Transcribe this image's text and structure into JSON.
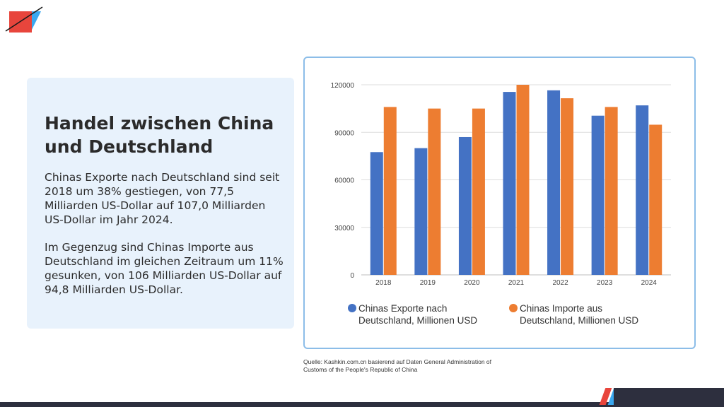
{
  "slide": {
    "title": "Handel zwischen China und Deutschland",
    "paragraph1": "Chinas Exporte nach Deutschland sind seit 2018 um 38% gestiegen, von 77,5 Milliarden US-Dollar auf 107,0 Milliarden US-Dollar im Jahr 2024.",
    "paragraph2": "Im Gegenzug sind Chinas Importe aus Deutschland im gleichen Zeitraum um 11% gesunken, von 106 Milliarden US-Dollar auf 94,8 Milliarden US-Dollar.",
    "source": "Quelle: Kashkin.com.cn basierend auf Daten General Administration of Customs of the People's Republic of China"
  },
  "colors": {
    "brand_red": "#e8453c",
    "brand_blue": "#3aa8f0",
    "dark": "#2d2f3e"
  },
  "chart_data": {
    "type": "bar",
    "categories": [
      "2018",
      "2019",
      "2020",
      "2021",
      "2022",
      "2023",
      "2024"
    ],
    "series": [
      {
        "name": "Chinas Exporte nach Deutschland, Millionen USD",
        "color": "#4472c4",
        "values": [
          77500,
          80000,
          87000,
          115500,
          116500,
          100500,
          107000
        ]
      },
      {
        "name": "Chinas Importe aus Deutschland, Millionen USD",
        "color": "#ed7d31",
        "values": [
          106000,
          105000,
          105000,
          120000,
          111500,
          106000,
          94800
        ]
      }
    ],
    "yticks": [
      "0",
      "30000",
      "60000",
      "90000",
      "120000"
    ],
    "ylim": [
      0,
      120000
    ],
    "grid": true,
    "legend": "bottom",
    "legend_lines": [
      [
        "Chinas Exporte nach",
        "Deutschland, Millionen USD"
      ],
      [
        "Chinas Importe aus",
        "Deutschland, Millionen USD"
      ]
    ]
  }
}
